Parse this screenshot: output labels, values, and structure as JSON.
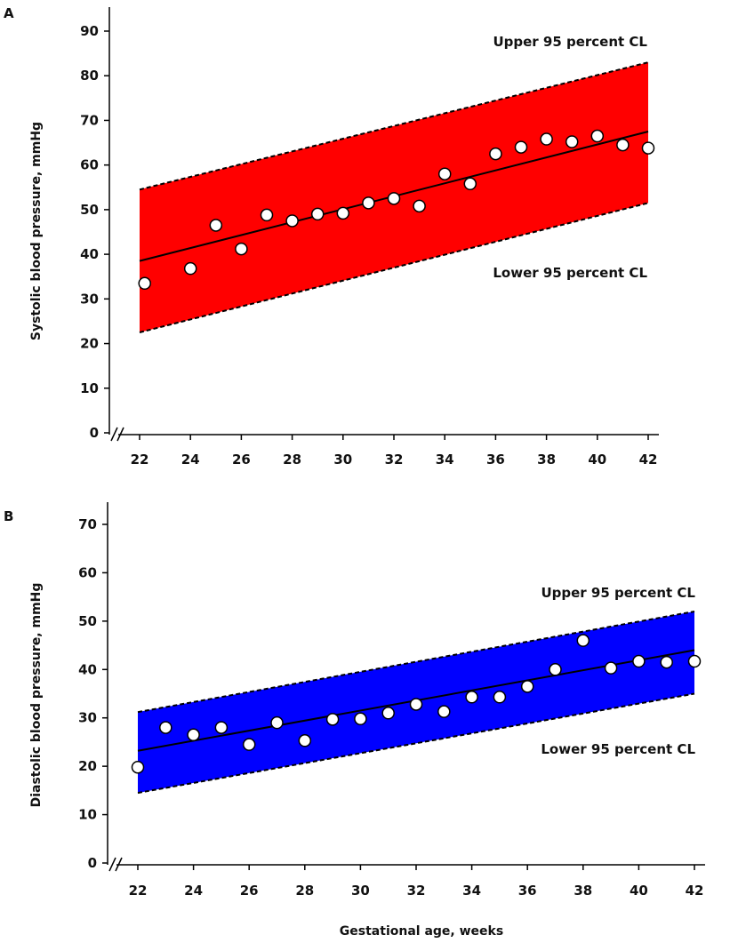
{
  "chart_data": [
    {
      "type": "scatter",
      "panel": "A",
      "ylabel": "Systolic blood pressure, mmHg",
      "xlabel": "",
      "xlim": [
        22,
        42
      ],
      "ylim": [
        0,
        90
      ],
      "x_ticks": [
        22,
        24,
        26,
        28,
        30,
        32,
        34,
        36,
        38,
        40,
        42
      ],
      "y_ticks": [
        0,
        10,
        20,
        30,
        40,
        50,
        60,
        70,
        80,
        90
      ],
      "axis_break": true,
      "band_color": "#ff0000",
      "band": {
        "name_upper": "Upper 95 percent CL",
        "name_lower": "Lower 95 percent CL",
        "upper": [
          [
            22,
            54.5
          ],
          [
            42,
            83
          ]
        ],
        "lower": [
          [
            22,
            22.5
          ],
          [
            42,
            51.5
          ]
        ]
      },
      "regression": [
        [
          22,
          38.5
        ],
        [
          42,
          67.5
        ]
      ],
      "points": [
        [
          22.2,
          33.5
        ],
        [
          24,
          36.8
        ],
        [
          25,
          46.5
        ],
        [
          26,
          41.2
        ],
        [
          27,
          48.8
        ],
        [
          28,
          47.5
        ],
        [
          29,
          49.0
        ],
        [
          30,
          49.2
        ],
        [
          31,
          51.5
        ],
        [
          32,
          52.5
        ],
        [
          33,
          50.8
        ],
        [
          34,
          58.0
        ],
        [
          35,
          55.8
        ],
        [
          36,
          62.5
        ],
        [
          37,
          64.0
        ],
        [
          38,
          65.8
        ],
        [
          39,
          65.2
        ],
        [
          40,
          66.5
        ],
        [
          41,
          64.5
        ],
        [
          42,
          63.8
        ]
      ]
    },
    {
      "type": "scatter",
      "panel": "B",
      "ylabel": "Diastolic blood pressure, mmHg",
      "xlabel": "Gestational age, weeks",
      "xlim": [
        22,
        42
      ],
      "ylim": [
        0,
        70
      ],
      "x_ticks": [
        22,
        24,
        26,
        28,
        30,
        32,
        34,
        36,
        38,
        40,
        42
      ],
      "y_ticks": [
        0,
        10,
        20,
        30,
        40,
        50,
        60,
        70
      ],
      "axis_break": true,
      "band_color": "#0000ff",
      "band": {
        "name_upper": "Upper 95 percent CL",
        "name_lower": "Lower 95 percent CL",
        "upper": [
          [
            22,
            31.2
          ],
          [
            42,
            52
          ]
        ],
        "lower": [
          [
            22,
            14.5
          ],
          [
            42,
            35
          ]
        ]
      },
      "regression": [
        [
          22,
          23.2
        ],
        [
          42,
          44
        ]
      ],
      "points": [
        [
          22,
          19.8
        ],
        [
          23,
          28.0
        ],
        [
          24,
          26.5
        ],
        [
          25,
          28.0
        ],
        [
          26,
          24.5
        ],
        [
          27,
          29.0
        ],
        [
          28,
          25.3
        ],
        [
          29,
          29.7
        ],
        [
          30,
          29.8
        ],
        [
          31,
          31.0
        ],
        [
          32,
          32.8
        ],
        [
          33,
          31.3
        ],
        [
          34,
          34.3
        ],
        [
          35,
          34.3
        ],
        [
          36,
          36.5
        ],
        [
          37,
          40.0
        ],
        [
          38,
          46.0
        ],
        [
          39,
          40.3
        ],
        [
          40,
          41.7
        ],
        [
          41,
          41.5
        ],
        [
          42,
          41.7
        ]
      ]
    }
  ]
}
